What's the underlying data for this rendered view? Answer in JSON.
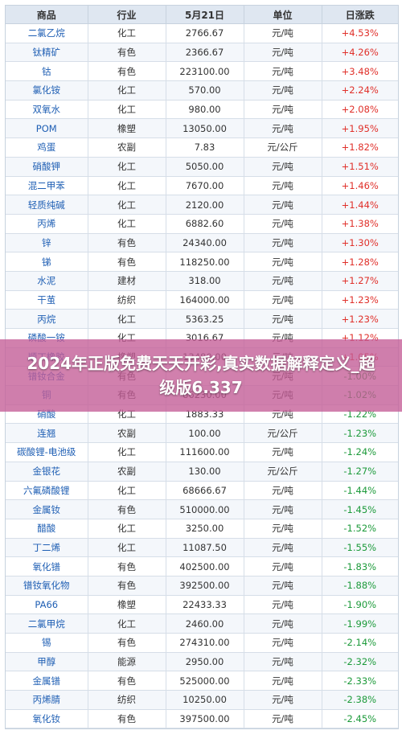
{
  "table": {
    "headers": [
      "商品",
      "行业",
      "5月21日",
      "单位",
      "日涨跌"
    ],
    "rows": [
      {
        "name": "二氯乙烷",
        "industry": "化工",
        "price": "2766.67",
        "unit": "元/吨",
        "change": "+4.53%",
        "dir": "up"
      },
      {
        "name": "钛精矿",
        "industry": "有色",
        "price": "2366.67",
        "unit": "元/吨",
        "change": "+4.26%",
        "dir": "up"
      },
      {
        "name": "钴",
        "industry": "有色",
        "price": "223100.00",
        "unit": "元/吨",
        "change": "+3.48%",
        "dir": "up"
      },
      {
        "name": "氯化铵",
        "industry": "化工",
        "price": "570.00",
        "unit": "元/吨",
        "change": "+2.24%",
        "dir": "up"
      },
      {
        "name": "双氧水",
        "industry": "化工",
        "price": "980.00",
        "unit": "元/吨",
        "change": "+2.08%",
        "dir": "up"
      },
      {
        "name": "POM",
        "industry": "橡塑",
        "price": "13050.00",
        "unit": "元/吨",
        "change": "+1.95%",
        "dir": "up"
      },
      {
        "name": "鸡蛋",
        "industry": "农副",
        "price": "7.83",
        "unit": "元/公斤",
        "change": "+1.82%",
        "dir": "up"
      },
      {
        "name": "硝酸钾",
        "industry": "化工",
        "price": "5050.00",
        "unit": "元/吨",
        "change": "+1.51%",
        "dir": "up"
      },
      {
        "name": "混二甲苯",
        "industry": "化工",
        "price": "7670.00",
        "unit": "元/吨",
        "change": "+1.46%",
        "dir": "up"
      },
      {
        "name": "轻质纯碱",
        "industry": "化工",
        "price": "2120.00",
        "unit": "元/吨",
        "change": "+1.44%",
        "dir": "up"
      },
      {
        "name": "丙烯",
        "industry": "化工",
        "price": "6882.60",
        "unit": "元/吨",
        "change": "+1.38%",
        "dir": "up"
      },
      {
        "name": "锌",
        "industry": "有色",
        "price": "24340.00",
        "unit": "元/吨",
        "change": "+1.30%",
        "dir": "up"
      },
      {
        "name": "锑",
        "industry": "有色",
        "price": "118250.00",
        "unit": "元/吨",
        "change": "+1.28%",
        "dir": "up"
      },
      {
        "name": "水泥",
        "industry": "建材",
        "price": "318.00",
        "unit": "元/吨",
        "change": "+1.27%",
        "dir": "up"
      },
      {
        "name": "干茧",
        "industry": "纺织",
        "price": "164000.00",
        "unit": "元/吨",
        "change": "+1.23%",
        "dir": "up"
      },
      {
        "name": "丙烷",
        "industry": "化工",
        "price": "5363.25",
        "unit": "元/吨",
        "change": "+1.23%",
        "dir": "up"
      },
      {
        "name": "磷酸一铵",
        "industry": "化工",
        "price": "3016.67",
        "unit": "元/吨",
        "change": "+1.12%",
        "dir": "up"
      },
      {
        "name": "顺丁橡胶",
        "industry": "橡塑",
        "price": "13480.00",
        "unit": "元/吨",
        "change": "+1.05%",
        "dir": "up"
      },
      {
        "name": "镨钕合金",
        "industry": "有色",
        "price": "",
        "unit": "元/吨",
        "change": "-1.00%",
        "dir": "down"
      },
      {
        "name": "铜",
        "industry": "有色",
        "price": "86230.00",
        "unit": "元/吨",
        "change": "-1.02%",
        "dir": "down"
      },
      {
        "name": "硝酸",
        "industry": "化工",
        "price": "1883.33",
        "unit": "元/吨",
        "change": "-1.22%",
        "dir": "down"
      },
      {
        "name": "连翘",
        "industry": "农副",
        "price": "100.00",
        "unit": "元/公斤",
        "change": "-1.23%",
        "dir": "down"
      },
      {
        "name": "碳酸锂-电池级",
        "industry": "化工",
        "price": "111600.00",
        "unit": "元/吨",
        "change": "-1.24%",
        "dir": "down"
      },
      {
        "name": "金银花",
        "industry": "农副",
        "price": "130.00",
        "unit": "元/公斤",
        "change": "-1.27%",
        "dir": "down"
      },
      {
        "name": "六氟磷酸锂",
        "industry": "化工",
        "price": "68666.67",
        "unit": "元/吨",
        "change": "-1.44%",
        "dir": "down"
      },
      {
        "name": "金属钕",
        "industry": "有色",
        "price": "510000.00",
        "unit": "元/吨",
        "change": "-1.45%",
        "dir": "down"
      },
      {
        "name": "醋酸",
        "industry": "化工",
        "price": "3250.00",
        "unit": "元/吨",
        "change": "-1.52%",
        "dir": "down"
      },
      {
        "name": "丁二烯",
        "industry": "化工",
        "price": "11087.50",
        "unit": "元/吨",
        "change": "-1.55%",
        "dir": "down"
      },
      {
        "name": "氧化镨",
        "industry": "有色",
        "price": "402500.00",
        "unit": "元/吨",
        "change": "-1.83%",
        "dir": "down"
      },
      {
        "name": "镨钕氧化物",
        "industry": "有色",
        "price": "392500.00",
        "unit": "元/吨",
        "change": "-1.88%",
        "dir": "down"
      },
      {
        "name": "PA66",
        "industry": "橡塑",
        "price": "22433.33",
        "unit": "元/吨",
        "change": "-1.90%",
        "dir": "down"
      },
      {
        "name": "二氯甲烷",
        "industry": "化工",
        "price": "2460.00",
        "unit": "元/吨",
        "change": "-1.99%",
        "dir": "down"
      },
      {
        "name": "锡",
        "industry": "有色",
        "price": "274310.00",
        "unit": "元/吨",
        "change": "-2.14%",
        "dir": "down"
      },
      {
        "name": "甲醇",
        "industry": "能源",
        "price": "2950.00",
        "unit": "元/吨",
        "change": "-2.32%",
        "dir": "down"
      },
      {
        "name": "金属镨",
        "industry": "有色",
        "price": "525000.00",
        "unit": "元/吨",
        "change": "-2.33%",
        "dir": "down"
      },
      {
        "name": "丙烯腈",
        "industry": "纺织",
        "price": "10250.00",
        "unit": "元/吨",
        "change": "-2.38%",
        "dir": "down"
      },
      {
        "name": "氧化钕",
        "industry": "有色",
        "price": "397500.00",
        "unit": "元/吨",
        "change": "-2.45%",
        "dir": "down"
      }
    ]
  },
  "banner": {
    "text": "2024年正版免费天天开彩,真实数据解释定义_超级版6.337",
    "color": "#c45c96"
  },
  "colors": {
    "up": "#e0302a",
    "down": "#1c9a3a",
    "name": "#1f5fb4",
    "header_bg": "#dfe7f1"
  }
}
